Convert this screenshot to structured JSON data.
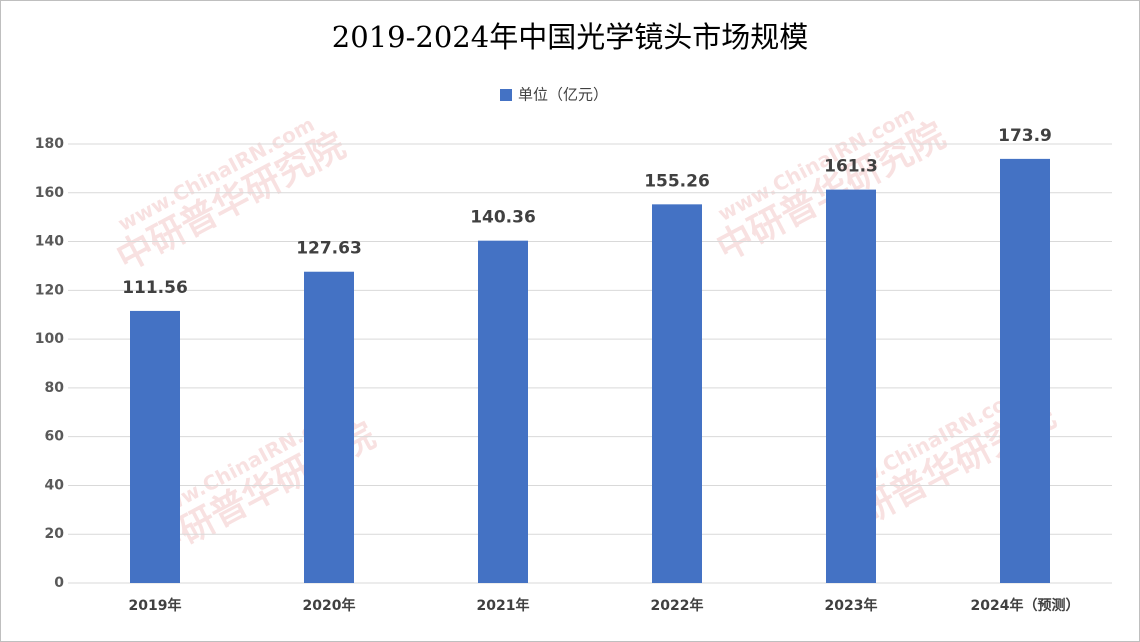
{
  "chart_data": {
    "type": "bar",
    "title": "2019-2024年中国光学镜头市场规模",
    "watermark_url": "www.ChinaIRN.com",
    "watermark_org": "中研普华研究院",
    "categories": [
      "2019年",
      "2020年",
      "2021年",
      "2022年",
      "2023年",
      "2024年（预测）"
    ],
    "series": [
      {
        "name": "单位（亿元）",
        "color": "#4472c4",
        "values": [
          111.56,
          127.63,
          140.36,
          155.26,
          161.3,
          173.9
        ]
      }
    ],
    "ylim": [
      0,
      180
    ],
    "yticks": [
      0,
      20,
      40,
      60,
      80,
      100,
      120,
      140,
      160,
      180
    ],
    "grid": true,
    "legend": "top"
  }
}
